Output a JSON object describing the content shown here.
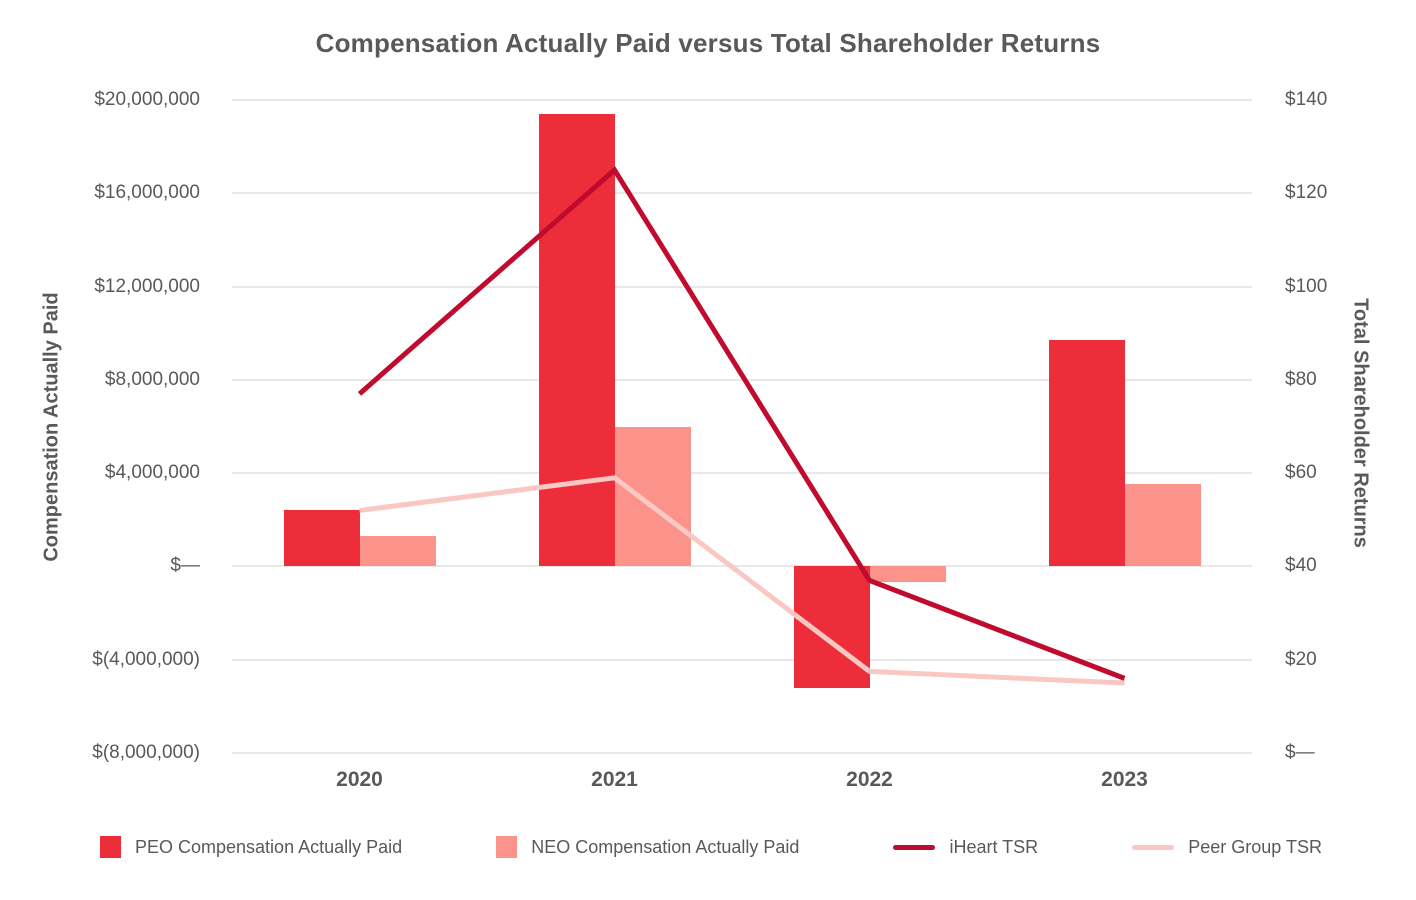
{
  "chart_data": {
    "type": "combo-bar-line",
    "title": "Compensation Actually Paid versus Total Shareholder Returns",
    "categories": [
      "2020",
      "2021",
      "2022",
      "2023"
    ],
    "bar_series": [
      {
        "name": "PEO Compensation Actually Paid",
        "color": "#ee2d3a",
        "axis": "left",
        "values": [
          2400000,
          19400000,
          -5200000,
          9700000
        ]
      },
      {
        "name": "NEO Compensation Actually Paid",
        "color": "#fc938b",
        "axis": "left",
        "values": [
          1300000,
          6000000,
          -650000,
          3550000
        ]
      }
    ],
    "line_series": [
      {
        "name": "Peer Group TSR",
        "color": "#f9c8c3",
        "axis": "right",
        "values": [
          52,
          59,
          17.5,
          15
        ]
      },
      {
        "name": "iHeart TSR",
        "color": "#c00a2e",
        "axis": "right",
        "values": [
          77,
          125,
          37,
          16
        ]
      }
    ],
    "left_axis": {
      "label": "Compensation Actually Paid",
      "min": -8000000,
      "max": 20000000,
      "ticks": [
        {
          "value": 20000000,
          "label": "$20,000,000"
        },
        {
          "value": 16000000,
          "label": "$16,000,000"
        },
        {
          "value": 12000000,
          "label": "$12,000,000"
        },
        {
          "value": 8000000,
          "label": "$8,000,000"
        },
        {
          "value": 4000000,
          "label": "$4,000,000"
        },
        {
          "value": 0,
          "label": "$—"
        },
        {
          "value": -4000000,
          "label": "$(4,000,000)"
        },
        {
          "value": -8000000,
          "label": "$(8,000,000)"
        }
      ]
    },
    "right_axis": {
      "label": "Total Shareholder Returns",
      "min": 0,
      "max": 140,
      "ticks": [
        {
          "value": 140,
          "label": "$140"
        },
        {
          "value": 120,
          "label": "$120"
        },
        {
          "value": 100,
          "label": "$100"
        },
        {
          "value": 80,
          "label": "$80"
        },
        {
          "value": 60,
          "label": "$60"
        },
        {
          "value": 40,
          "label": "$40"
        },
        {
          "value": 20,
          "label": "$20"
        },
        {
          "value": 0,
          "label": "$—"
        }
      ]
    },
    "grid": true,
    "legend_position": "bottom",
    "legend": [
      {
        "label": "PEO Compensation Actually Paid",
        "marker": "square",
        "color": "#ee2d3a"
      },
      {
        "label": "NEO Compensation Actually Paid",
        "marker": "square",
        "color": "#fc938b"
      },
      {
        "label": "iHeart TSR",
        "marker": "line",
        "color": "#c00a2e"
      },
      {
        "label": "Peer Group TSR",
        "marker": "line",
        "color": "#f9c8c3"
      }
    ]
  },
  "colors": {
    "background": "#ffffff",
    "grid": "#e8e8e8",
    "text": "#595959",
    "title": "#58595b"
  }
}
